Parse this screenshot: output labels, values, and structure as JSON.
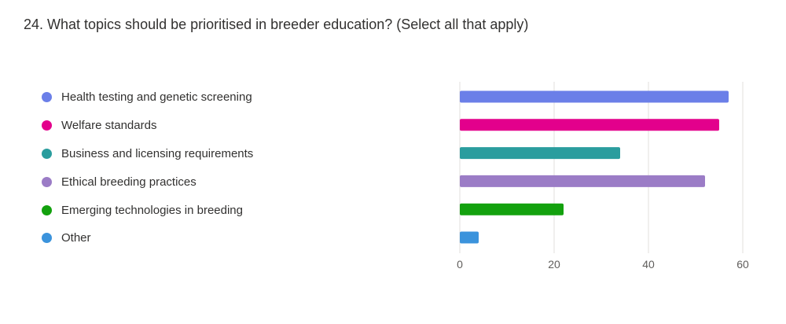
{
  "question": {
    "title": "24. What topics should be prioritised in breeder education? (Select all that apply)"
  },
  "chart_data": {
    "type": "bar",
    "orientation": "horizontal",
    "categories": [
      "Health testing and genetic screening",
      "Welfare standards",
      "Business and licensing requirements",
      "Ethical breeding practices",
      "Emerging technologies in breeding",
      "Other"
    ],
    "values": [
      57,
      55,
      34,
      52,
      22,
      4
    ],
    "colors": [
      "#6b7fe8",
      "#e3008c",
      "#2a9d9e",
      "#9b7cc6",
      "#13a10e",
      "#3b93dc"
    ],
    "xlim": [
      0,
      60
    ],
    "xticks": [
      0,
      20,
      40,
      60
    ],
    "grid": true,
    "legend_position": "left"
  }
}
